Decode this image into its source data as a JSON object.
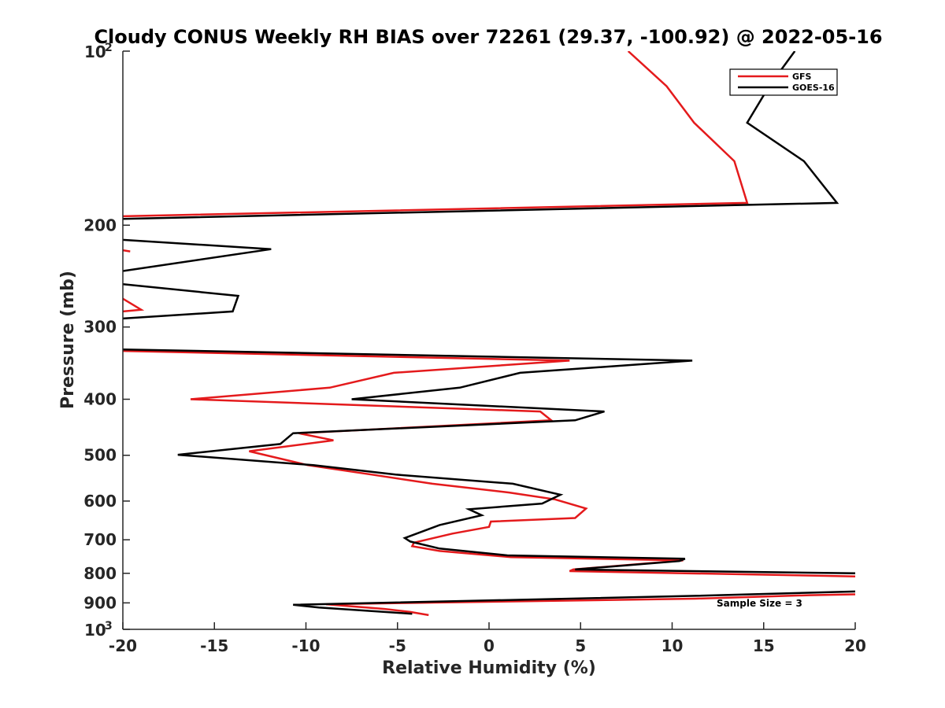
{
  "chart_data": {
    "type": "line",
    "title": "Cloudy CONUS Weekly RH BIAS over 72261 (29.37, -100.92) @ 2022-05-16",
    "xlabel": "Relative Humidity (%)",
    "ylabel": "Pressure (mb)",
    "xlim": [
      -20,
      20
    ],
    "ylim": [
      100,
      1000
    ],
    "y_scale": "log",
    "y_reversed": true,
    "x_ticks": [
      {
        "value": -20,
        "label": "-20"
      },
      {
        "value": -15,
        "label": "-15"
      },
      {
        "value": -10,
        "label": "-10"
      },
      {
        "value": -5,
        "label": "-5"
      },
      {
        "value": 0,
        "label": "0"
      },
      {
        "value": 5,
        "label": "5"
      },
      {
        "value": 10,
        "label": "10"
      },
      {
        "value": 15,
        "label": "15"
      },
      {
        "value": 20,
        "label": "20"
      }
    ],
    "y_ticks": [
      {
        "value": 100,
        "label": "10",
        "sup": "2"
      },
      {
        "value": 200,
        "label": "200"
      },
      {
        "value": 300,
        "label": "300"
      },
      {
        "value": 400,
        "label": "400"
      },
      {
        "value": 500,
        "label": "500"
      },
      {
        "value": 600,
        "label": "600"
      },
      {
        "value": 700,
        "label": "700"
      },
      {
        "value": 800,
        "label": "800"
      },
      {
        "value": 900,
        "label": "900"
      },
      {
        "value": 1000,
        "label": "10",
        "sup": "3"
      }
    ],
    "grid": false,
    "legend_position": "top-right",
    "annotation": "Sample Size = 3",
    "series": [
      {
        "name": "GFS",
        "color": "#e41a1c",
        "segments": [
          [
            [
              7.6,
              100
            ],
            [
              9.7,
              115
            ],
            [
              11.2,
              133
            ],
            [
              13.4,
              155
            ],
            [
              14.1,
              183
            ],
            [
              -20,
              193
            ]
          ],
          [
            [
              -19.6,
              222
            ],
            [
              -20,
              221
            ]
          ],
          [
            [
              -20,
              268
            ],
            [
              -19,
              280
            ],
            [
              -20,
              282
            ]
          ],
          [
            [
              -20,
              330
            ],
            [
              4.4,
              343
            ],
            [
              -5.2,
              360
            ],
            [
              -8.7,
              382
            ],
            [
              -16.3,
              400
            ],
            [
              2.8,
              420
            ],
            [
              3.4,
              435
            ],
            [
              -10.4,
              458
            ],
            [
              -8.5,
              471
            ],
            [
              -13.1,
              492
            ],
            [
              -9.9,
              520
            ],
            [
              -6.4,
              540
            ],
            [
              -3.1,
              560
            ],
            [
              1.1,
              580
            ],
            [
              3.6,
              596
            ],
            [
              5.3,
              618
            ],
            [
              4.7,
              642
            ],
            [
              0.1,
              651
            ],
            [
              0.0,
              665
            ],
            [
              -2.0,
              683
            ],
            [
              -4.1,
              708
            ],
            [
              -4.2,
              718
            ],
            [
              -2.7,
              732
            ],
            [
              1.2,
              750
            ],
            [
              10.6,
              760
            ],
            [
              4.6,
              788
            ],
            [
              4.4,
              793
            ],
            [
              20.0,
              810
            ]
          ],
          [
            [
              20.0,
              870
            ],
            [
              17.5,
              873
            ],
            [
              11.3,
              885
            ],
            [
              -8.9,
              905
            ],
            [
              -5.7,
              922
            ],
            [
              -4.3,
              933
            ],
            [
              -3.3,
              945
            ]
          ]
        ]
      },
      {
        "name": "GOES-16",
        "color": "#000000",
        "segments": [
          [
            [
              16.7,
              100
            ],
            [
              15.3,
              115
            ],
            [
              14.1,
              133
            ],
            [
              17.2,
              155
            ],
            [
              19.0,
              183
            ],
            [
              -20,
              195
            ]
          ],
          [
            [
              -20,
              212
            ],
            [
              -11.9,
              220
            ],
            [
              -20,
              240
            ]
          ],
          [
            [
              -20,
              253
            ],
            [
              -13.7,
              265
            ],
            [
              -14.0,
              282
            ],
            [
              -20,
              290
            ]
          ],
          [
            [
              -20,
              328
            ],
            [
              11.1,
              343
            ],
            [
              1.7,
              360
            ],
            [
              -1.6,
              382
            ],
            [
              -7.5,
              400
            ],
            [
              6.3,
              420
            ],
            [
              4.7,
              435
            ],
            [
              -10.7,
              458
            ],
            [
              -11.4,
              478
            ],
            [
              -17.0,
              499
            ],
            [
              -9.6,
              520
            ],
            [
              -5.1,
              540
            ],
            [
              1.3,
              560
            ],
            [
              3.9,
              585
            ],
            [
              2.9,
              606
            ],
            [
              -1.1,
              620
            ],
            [
              -0.4,
              635
            ],
            [
              -2.7,
              660
            ],
            [
              -4.6,
              695
            ],
            [
              -4.3,
              705
            ],
            [
              -2.7,
              725
            ],
            [
              1.0,
              745
            ],
            [
              10.7,
              755
            ],
            [
              10.4,
              762
            ],
            [
              4.7,
              788
            ],
            [
              20.0,
              800
            ]
          ],
          [
            [
              20.0,
              860
            ],
            [
              11.3,
              875
            ],
            [
              -10.7,
              907
            ],
            [
              -9.3,
              917
            ],
            [
              -4.2,
              940
            ]
          ]
        ]
      }
    ]
  }
}
